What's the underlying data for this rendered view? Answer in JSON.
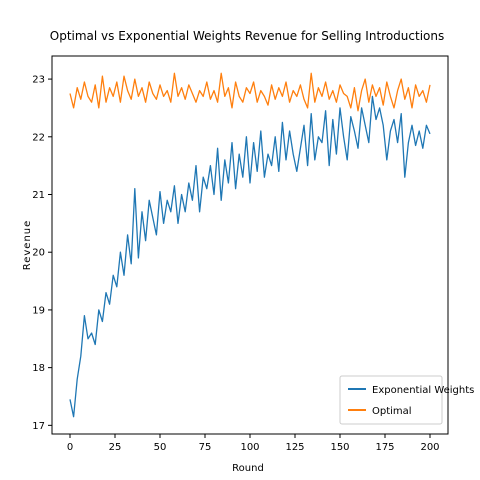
{
  "chart_data": {
    "type": "line",
    "title": "Optimal vs Exponential Weights Revenue for Selling Introductions",
    "xlabel": "Round",
    "ylabel": "Revenue",
    "xlim": [
      -10,
      210
    ],
    "ylim": [
      16.85,
      23.4
    ],
    "xticks": [
      0,
      25,
      50,
      75,
      100,
      125,
      150,
      175,
      200
    ],
    "yticks": [
      17,
      18,
      19,
      20,
      21,
      22,
      23
    ],
    "grid": false,
    "legend_position": "lower-right",
    "series": [
      {
        "name": "Exponential Weights",
        "color": "#1f77b4",
        "x": [
          0,
          2,
          4,
          6,
          8,
          10,
          12,
          14,
          16,
          18,
          20,
          22,
          24,
          26,
          28,
          30,
          32,
          34,
          36,
          38,
          40,
          42,
          44,
          46,
          48,
          50,
          52,
          54,
          56,
          58,
          60,
          62,
          64,
          66,
          68,
          70,
          72,
          74,
          76,
          78,
          80,
          82,
          84,
          86,
          88,
          90,
          92,
          94,
          96,
          98,
          100,
          102,
          104,
          106,
          108,
          110,
          112,
          114,
          116,
          118,
          120,
          122,
          124,
          126,
          128,
          130,
          132,
          134,
          136,
          138,
          140,
          142,
          144,
          146,
          148,
          150,
          152,
          154,
          156,
          158,
          160,
          162,
          164,
          166,
          168,
          170,
          172,
          174,
          176,
          178,
          180,
          182,
          184,
          186,
          188,
          190,
          192,
          194,
          196,
          198,
          200
        ],
        "y": [
          17.45,
          17.15,
          17.8,
          18.2,
          18.9,
          18.5,
          18.6,
          18.4,
          19.0,
          18.8,
          19.3,
          19.1,
          19.6,
          19.4,
          20.0,
          19.6,
          20.3,
          19.8,
          21.1,
          19.9,
          20.7,
          20.2,
          20.9,
          20.6,
          20.3,
          21.05,
          20.5,
          20.9,
          20.7,
          21.15,
          20.5,
          21.0,
          20.7,
          21.2,
          20.9,
          21.5,
          20.7,
          21.3,
          21.1,
          21.5,
          21.0,
          21.8,
          20.9,
          21.6,
          21.2,
          21.9,
          21.1,
          21.7,
          21.3,
          22.0,
          21.2,
          21.9,
          21.4,
          22.1,
          21.3,
          21.7,
          21.5,
          22.0,
          21.4,
          22.25,
          21.6,
          22.1,
          21.7,
          21.4,
          21.8,
          22.2,
          21.5,
          22.4,
          21.6,
          22.0,
          21.9,
          22.45,
          21.5,
          22.3,
          21.7,
          22.5,
          22.0,
          21.6,
          22.35,
          22.1,
          21.8,
          22.5,
          22.2,
          21.9,
          22.7,
          22.3,
          22.5,
          22.2,
          21.6,
          22.1,
          22.3,
          21.9,
          22.4,
          21.3,
          21.9,
          22.2,
          21.85,
          22.1,
          21.8,
          22.2,
          22.05
        ]
      },
      {
        "name": "Optimal",
        "color": "#ff7f0e",
        "x": [
          0,
          2,
          4,
          6,
          8,
          10,
          12,
          14,
          16,
          18,
          20,
          22,
          24,
          26,
          28,
          30,
          32,
          34,
          36,
          38,
          40,
          42,
          44,
          46,
          48,
          50,
          52,
          54,
          56,
          58,
          60,
          62,
          64,
          66,
          68,
          70,
          72,
          74,
          76,
          78,
          80,
          82,
          84,
          86,
          88,
          90,
          92,
          94,
          96,
          98,
          100,
          102,
          104,
          106,
          108,
          110,
          112,
          114,
          116,
          118,
          120,
          122,
          124,
          126,
          128,
          130,
          132,
          134,
          136,
          138,
          140,
          142,
          144,
          146,
          148,
          150,
          152,
          154,
          156,
          158,
          160,
          162,
          164,
          166,
          168,
          170,
          172,
          174,
          176,
          178,
          180,
          182,
          184,
          186,
          188,
          190,
          192,
          194,
          196,
          198,
          200
        ],
        "y": [
          22.75,
          22.5,
          22.85,
          22.65,
          22.95,
          22.7,
          22.6,
          22.9,
          22.5,
          23.05,
          22.6,
          22.85,
          22.7,
          22.95,
          22.6,
          23.05,
          22.8,
          22.65,
          23.0,
          22.7,
          22.85,
          22.6,
          22.95,
          22.75,
          22.65,
          22.9,
          22.7,
          22.8,
          22.6,
          23.1,
          22.7,
          22.85,
          22.65,
          22.9,
          22.75,
          22.6,
          22.8,
          22.7,
          22.95,
          22.65,
          22.8,
          22.6,
          23.1,
          22.7,
          22.85,
          22.5,
          22.95,
          22.7,
          22.6,
          22.85,
          22.75,
          22.95,
          22.6,
          22.8,
          22.7,
          22.55,
          22.9,
          22.65,
          22.85,
          22.7,
          22.95,
          22.6,
          22.8,
          22.7,
          22.9,
          22.65,
          22.5,
          23.1,
          22.6,
          22.85,
          22.7,
          22.95,
          22.65,
          22.8,
          22.6,
          22.9,
          22.75,
          22.7,
          22.5,
          22.85,
          22.45,
          22.8,
          23.0,
          22.6,
          22.9,
          22.7,
          22.85,
          22.55,
          22.95,
          22.7,
          22.5,
          22.8,
          23.0,
          22.65,
          22.85,
          22.5,
          22.9,
          22.7,
          22.8,
          22.6,
          22.9
        ]
      }
    ]
  }
}
